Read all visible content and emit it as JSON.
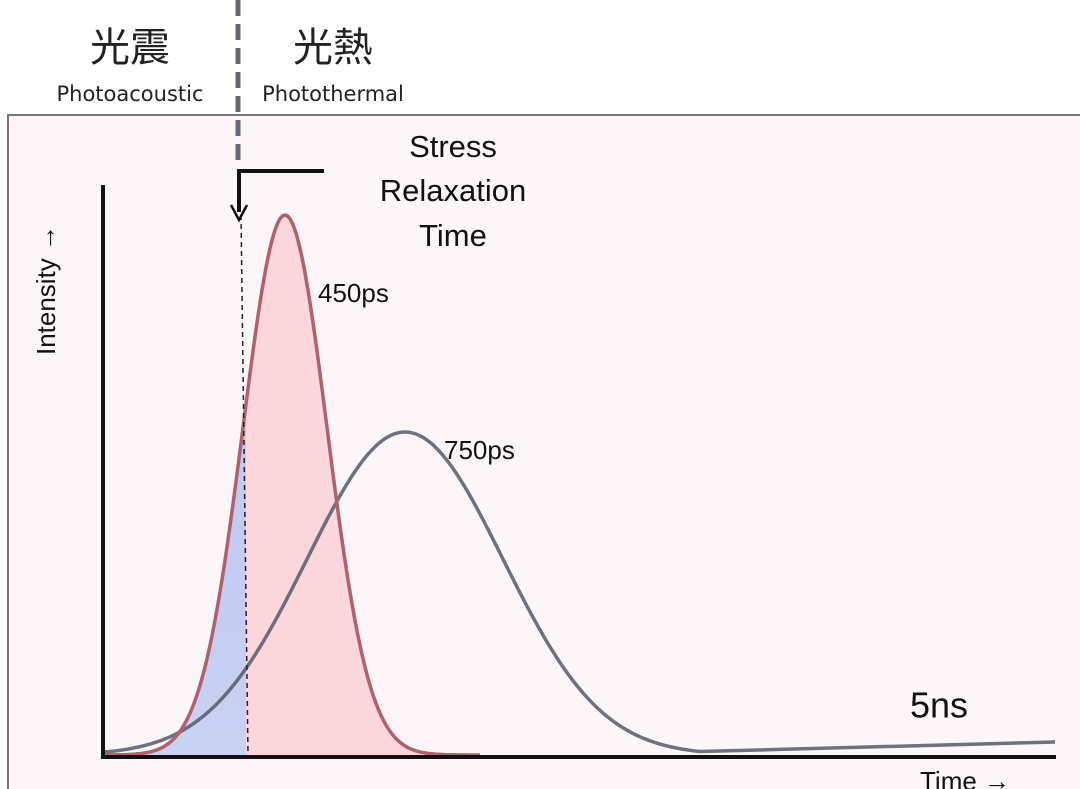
{
  "header": {
    "left": {
      "title": "光震",
      "subtitle": "Photoacoustic"
    },
    "right": {
      "title": "光熱",
      "subtitle": "Photothermal"
    }
  },
  "diagram": {
    "stress_label": [
      "Stress",
      "Relaxation",
      "Time"
    ],
    "curve_labels": [
      "450ps",
      "750ps"
    ],
    "end_label": "5ns",
    "y_axis": "Intensity →",
    "x_axis": "Time →"
  }
}
